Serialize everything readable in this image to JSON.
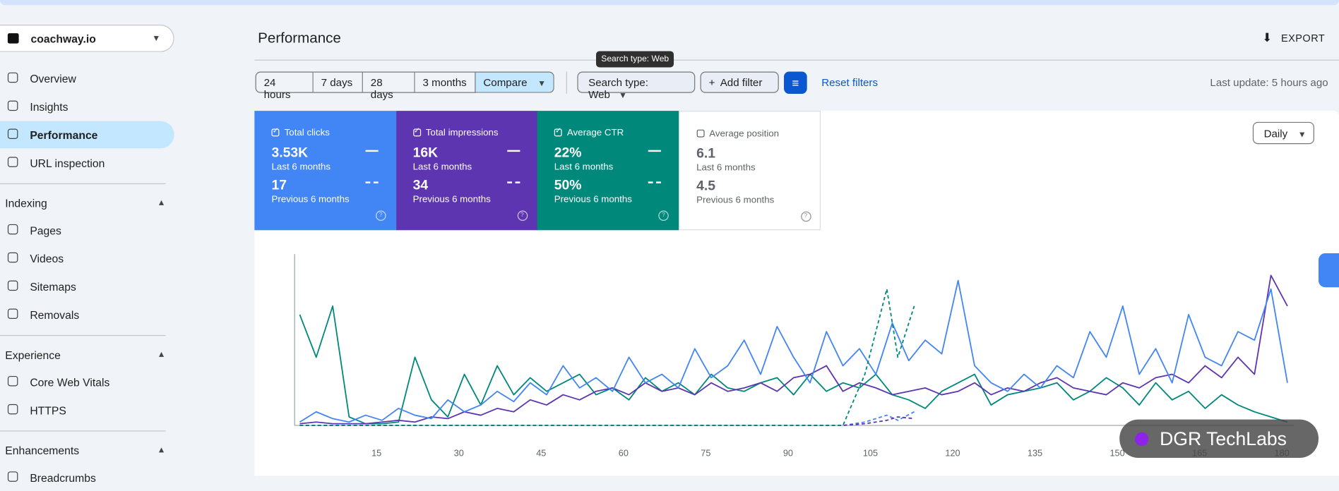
{
  "header": {
    "site": "coachway.io",
    "title": "Performance",
    "export": "EXPORT"
  },
  "nav": {
    "items": [
      "Overview",
      "Insights",
      "Performance",
      "URL inspection"
    ],
    "sections": [
      {
        "title": "Indexing",
        "items": [
          "Pages",
          "Videos",
          "Sitemaps",
          "Removals"
        ]
      },
      {
        "title": "Experience",
        "items": [
          "Core Web Vitals",
          "HTTPS"
        ]
      },
      {
        "title": "Enhancements",
        "items": [
          "Breadcrumbs"
        ]
      }
    ]
  },
  "toolbar": {
    "ranges": [
      "24 hours",
      "7 days",
      "28 days",
      "3 months",
      "Compare"
    ],
    "tooltip": "Search type: Web",
    "search_type": "Search type: Web",
    "add_filter": "Add filter",
    "reset": "Reset filters",
    "last_update": "Last update: 5 hours ago"
  },
  "cards": [
    {
      "label": "Total clicks",
      "current": "3.53K",
      "current_period": "Last 6 months",
      "previous": "17",
      "previous_period": "Previous 6 months",
      "color": "#4285f4",
      "checked": true
    },
    {
      "label": "Total impressions",
      "current": "16K",
      "current_period": "Last 6 months",
      "previous": "34",
      "previous_period": "Previous 6 months",
      "color": "#5e35b1",
      "checked": true
    },
    {
      "label": "Average CTR",
      "current": "22%",
      "current_period": "Last 6 months",
      "previous": "50%",
      "previous_period": "Previous 6 months",
      "color": "#00897b",
      "checked": true
    },
    {
      "label": "Average position",
      "current": "6.1",
      "current_period": "Last 6 months",
      "previous": "4.5",
      "previous_period": "Previous 6 months",
      "color": "#ffffff",
      "checked": false
    }
  ],
  "granularity": "Daily",
  "watermark": "DGR TechLabs",
  "chart_data": {
    "type": "line",
    "xlim": [
      1,
      182
    ],
    "ylim": [
      0,
      100
    ],
    "xticks": [
      15,
      30,
      45,
      60,
      75,
      90,
      105,
      120,
      135,
      150,
      165,
      180
    ],
    "x": [
      1,
      4,
      7,
      10,
      13,
      16,
      19,
      22,
      25,
      28,
      31,
      34,
      37,
      40,
      43,
      46,
      49,
      52,
      55,
      58,
      61,
      64,
      67,
      70,
      73,
      76,
      79,
      82,
      85,
      88,
      91,
      94,
      97,
      100,
      103,
      106,
      109,
      112,
      115,
      118,
      121,
      124,
      127,
      130,
      133,
      136,
      139,
      142,
      145,
      148,
      151,
      154,
      157,
      160,
      163,
      166,
      169,
      172,
      175,
      178,
      181
    ],
    "series": [
      {
        "color": "#00897b",
        "values": [
          65,
          40,
          70,
          5,
          1,
          1,
          2,
          40,
          15,
          5,
          30,
          12,
          35,
          18,
          28,
          20,
          25,
          30,
          18,
          22,
          15,
          28,
          20,
          25,
          18,
          30,
          22,
          20,
          25,
          28,
          18,
          30,
          20,
          25,
          22,
          30,
          18,
          15,
          10,
          20,
          25,
          30,
          12,
          18,
          20,
          22,
          25,
          15,
          20,
          28,
          22,
          12,
          25,
          15,
          20,
          10,
          18,
          12,
          8,
          5,
          2
        ]
      },
      {
        "color": "#5e35b1",
        "values": [
          1,
          2,
          1,
          1,
          1,
          2,
          3,
          2,
          5,
          4,
          8,
          6,
          10,
          8,
          15,
          12,
          18,
          15,
          20,
          22,
          18,
          25,
          20,
          22,
          18,
          25,
          20,
          22,
          25,
          20,
          28,
          30,
          35,
          20,
          25,
          22,
          18,
          20,
          22,
          18,
          20,
          25,
          18,
          22,
          20,
          25,
          28,
          22,
          20,
          18,
          25,
          22,
          28,
          30,
          25,
          35,
          28,
          40,
          30,
          88,
          70
        ]
      },
      {
        "color": "#4285f4",
        "values": [
          2,
          8,
          4,
          2,
          6,
          3,
          10,
          6,
          4,
          15,
          8,
          12,
          20,
          14,
          25,
          18,
          35,
          22,
          28,
          20,
          40,
          25,
          30,
          22,
          45,
          28,
          35,
          50,
          30,
          58,
          40,
          25,
          55,
          35,
          45,
          30,
          60,
          38,
          50,
          42,
          85,
          35,
          25,
          20,
          30,
          22,
          35,
          28,
          55,
          40,
          70,
          30,
          45,
          25,
          65,
          40,
          35,
          55,
          50,
          80,
          25
        ]
      },
      {
        "color": "#4285f4",
        "dashed": true,
        "x": [
          1,
          20,
          40,
          60,
          80,
          100,
          104,
          108,
          110,
          113
        ],
        "values": [
          0,
          0,
          0,
          0,
          0,
          0,
          2,
          6,
          3,
          8
        ]
      },
      {
        "color": "#5e35b1",
        "dashed": true,
        "x": [
          1,
          20,
          40,
          60,
          80,
          100,
          104,
          108,
          110,
          113
        ],
        "values": [
          0,
          0,
          0,
          0,
          0,
          0,
          1,
          3,
          5,
          4
        ]
      },
      {
        "color": "#00897b",
        "dashed": true,
        "x": [
          1,
          20,
          40,
          60,
          80,
          100,
          104,
          108,
          110,
          113
        ],
        "values": [
          0,
          0,
          0,
          0,
          0,
          0,
          30,
          80,
          40,
          70
        ]
      }
    ]
  }
}
